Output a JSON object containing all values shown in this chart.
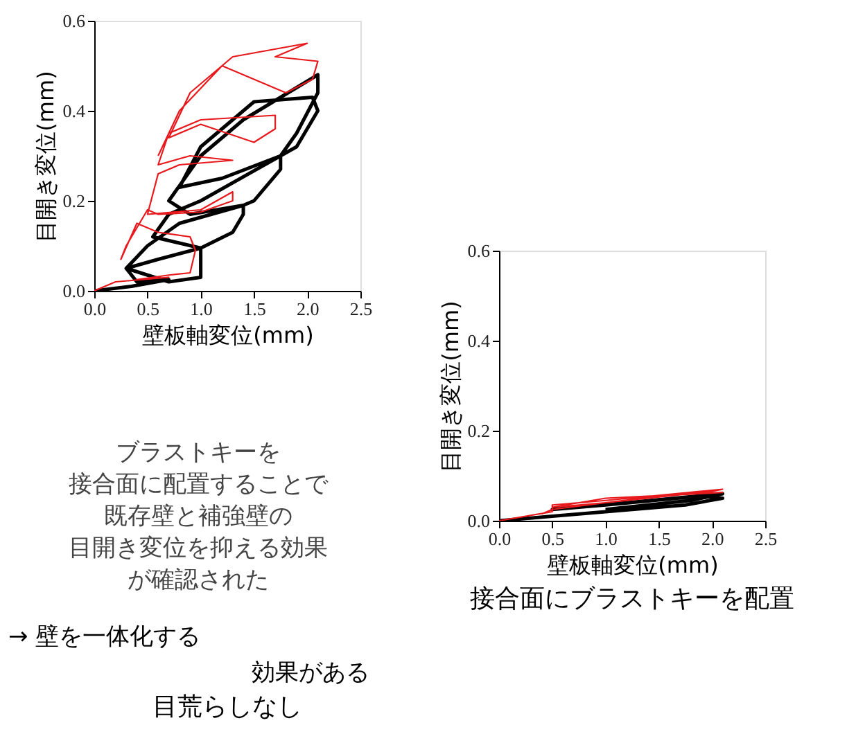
{
  "chart_data": [
    {
      "type": "line",
      "title": "目荒らしなし",
      "xlabel": "壁板軸変位(mm)",
      "ylabel": "目開き変位(mm)",
      "xlim": [
        0,
        2.5
      ],
      "ylim": [
        0,
        0.6
      ],
      "xticks": [
        {
          "value": 0,
          "label": "0.0"
        },
        0.5,
        {
          "value": 1,
          "label": "1.0"
        },
        1.5,
        {
          "value": 2,
          "label": "2.0"
        },
        2.5
      ],
      "yticks": [
        {
          "value": 0,
          "label": "0.0"
        },
        0.2,
        0.4,
        0.6
      ],
      "grid": false,
      "series": [
        {
          "color": "#000000",
          "x": [
            0,
            0.35,
            0.7,
            0.4,
            0.3,
            0.6,
            1.0,
            1.0,
            1.0,
            0.7,
            0.3,
            0.5,
            0.8,
            1.4,
            1.4,
            1.3,
            1.0,
            0.55,
            0.7,
            1.0,
            1.75,
            1.75,
            1.5,
            1.4,
            0.9,
            0.7,
            1.0,
            1.4,
            2.1,
            2.1,
            1.9,
            1.75,
            1.2,
            0.8,
            1.0,
            1.5,
            2.05,
            2.1,
            1.9,
            1.6
          ],
          "values": [
            0,
            0.01,
            0.025,
            0.02,
            0.05,
            0.07,
            0.095,
            0.06,
            0.03,
            0.02,
            0.05,
            0.1,
            0.15,
            0.19,
            0.17,
            0.13,
            0.095,
            0.12,
            0.17,
            0.2,
            0.3,
            0.27,
            0.2,
            0.19,
            0.17,
            0.2,
            0.3,
            0.38,
            0.48,
            0.44,
            0.35,
            0.3,
            0.25,
            0.23,
            0.32,
            0.42,
            0.43,
            0.4,
            0.32,
            0.28
          ]
        },
        {
          "color": "#e8191c",
          "x": [
            0,
            0.2,
            0.7,
            0.4,
            0.7,
            0.9,
            0.95,
            0.9,
            0.6,
            0.4,
            0.25,
            0.3,
            0.5,
            0.6,
            1.0,
            1.3,
            1.3,
            1.0,
            0.5,
            0.6,
            0.8,
            1.3,
            0.9,
            0.6,
            0.7,
            1.0,
            1.7,
            1.7,
            1.5,
            1.0,
            0.7,
            0.9,
            1.3,
            2.0,
            1.7,
            2.1,
            2.05,
            1.8,
            1.2,
            0.8,
            0.6
          ],
          "values": [
            0,
            0.02,
            0.03,
            0.025,
            0.035,
            0.04,
            0.09,
            0.12,
            0.13,
            0.15,
            0.07,
            0.1,
            0.18,
            0.17,
            0.175,
            0.2,
            0.22,
            0.18,
            0.17,
            0.26,
            0.28,
            0.29,
            0.3,
            0.28,
            0.35,
            0.38,
            0.39,
            0.36,
            0.33,
            0.37,
            0.34,
            0.44,
            0.52,
            0.55,
            0.52,
            0.51,
            0.47,
            0.44,
            0.5,
            0.4,
            0.3
          ]
        }
      ],
      "annotations": [
        "ブラストキーを",
        "接合面に配置することで",
        "既存壁と補強壁の",
        "目開き変位を抑える効果",
        "が確認された",
        "→  壁を一体化する",
        "効果がある"
      ]
    },
    {
      "type": "line",
      "title": "接合面にブラストキーを配置",
      "xlabel": "壁板軸変位(mm)",
      "ylabel": "目開き変位(mm)",
      "xlim": [
        0,
        2.5
      ],
      "ylim": [
        0,
        0.6
      ],
      "xticks": [
        {
          "value": 0,
          "label": "0.0"
        },
        0.5,
        {
          "value": 1,
          "label": "1.0"
        },
        1.5,
        {
          "value": 2,
          "label": "2.0"
        },
        2.5
      ],
      "yticks": [
        {
          "value": 0,
          "label": "0.0"
        },
        0.2,
        0.4,
        0.6
      ],
      "grid": false,
      "series": [
        {
          "color": "#000000",
          "x": [
            0,
            0.5,
            1.0,
            1.75,
            2.1,
            1.9,
            1.0,
            0.5,
            1.2,
            2.1,
            1.8,
            1.0
          ],
          "values": [
            0,
            0.01,
            0.02,
            0.035,
            0.05,
            0.055,
            0.035,
            0.025,
            0.04,
            0.06,
            0.045,
            0.025
          ]
        },
        {
          "color": "#e8191c",
          "x": [
            0,
            0.5,
            0.5,
            1.0,
            2.1,
            2.0,
            1.0,
            0.5,
            1.0,
            2.1,
            1.5,
            0.5,
            0.4
          ],
          "values": [
            0,
            0.02,
            0.035,
            0.045,
            0.07,
            0.065,
            0.04,
            0.03,
            0.05,
            0.063,
            0.055,
            0.025,
            0.015
          ]
        }
      ]
    }
  ]
}
